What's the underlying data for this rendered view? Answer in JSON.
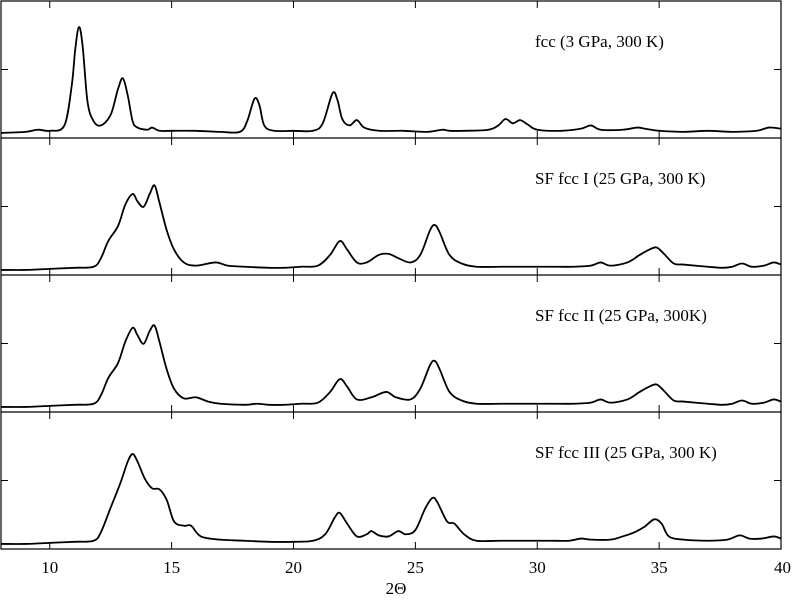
{
  "chart_data": {
    "type": "line",
    "xlabel": "2Θ",
    "ylabel": "",
    "xlim": [
      8,
      40
    ],
    "xticks": [
      10,
      15,
      20,
      25,
      30,
      35,
      40
    ],
    "grid": false,
    "panels": [
      {
        "label": "fcc (3 GPa, 300 K)",
        "ymax": 1.0,
        "points": [
          [
            8,
            0.01
          ],
          [
            9,
            0.02
          ],
          [
            9.5,
            0.04
          ],
          [
            10,
            0.03
          ],
          [
            10.6,
            0.08
          ],
          [
            10.9,
            0.45
          ],
          [
            11.05,
            0.8
          ],
          [
            11.2,
            1.0
          ],
          [
            11.35,
            0.82
          ],
          [
            11.55,
            0.3
          ],
          [
            11.8,
            0.12
          ],
          [
            12.1,
            0.08
          ],
          [
            12.5,
            0.18
          ],
          [
            12.8,
            0.42
          ],
          [
            13.0,
            0.52
          ],
          [
            13.2,
            0.36
          ],
          [
            13.4,
            0.12
          ],
          [
            13.6,
            0.06
          ],
          [
            14.0,
            0.04
          ],
          [
            14.2,
            0.06
          ],
          [
            14.5,
            0.03
          ],
          [
            15,
            0.03
          ],
          [
            16,
            0.03
          ],
          [
            17,
            0.02
          ],
          [
            17.8,
            0.02
          ],
          [
            18.1,
            0.12
          ],
          [
            18.4,
            0.33
          ],
          [
            18.6,
            0.27
          ],
          [
            18.8,
            0.08
          ],
          [
            19.2,
            0.03
          ],
          [
            20,
            0.03
          ],
          [
            20.8,
            0.03
          ],
          [
            21.2,
            0.1
          ],
          [
            21.6,
            0.38
          ],
          [
            21.8,
            0.32
          ],
          [
            22.0,
            0.14
          ],
          [
            22.3,
            0.08
          ],
          [
            22.6,
            0.13
          ],
          [
            22.9,
            0.06
          ],
          [
            23.5,
            0.03
          ],
          [
            24.5,
            0.03
          ],
          [
            25.5,
            0.02
          ],
          [
            26.1,
            0.04
          ],
          [
            26.4,
            0.03
          ],
          [
            27,
            0.03
          ],
          [
            28,
            0.04
          ],
          [
            28.4,
            0.08
          ],
          [
            28.7,
            0.14
          ],
          [
            29.0,
            0.1
          ],
          [
            29.3,
            0.13
          ],
          [
            29.6,
            0.09
          ],
          [
            30,
            0.04
          ],
          [
            31,
            0.03
          ],
          [
            31.8,
            0.05
          ],
          [
            32.2,
            0.08
          ],
          [
            32.6,
            0.04
          ],
          [
            33.5,
            0.04
          ],
          [
            34.1,
            0.06
          ],
          [
            34.4,
            0.05
          ],
          [
            35,
            0.03
          ],
          [
            36,
            0.02
          ],
          [
            37,
            0.03
          ],
          [
            38,
            0.02
          ],
          [
            39,
            0.03
          ],
          [
            39.5,
            0.06
          ],
          [
            40,
            0.05
          ]
        ]
      },
      {
        "label": "SF fcc I (25 GPa, 300 K)",
        "ymax": 1.0,
        "points": [
          [
            8,
            0.01
          ],
          [
            9,
            0.01
          ],
          [
            10,
            0.02
          ],
          [
            11,
            0.03
          ],
          [
            11.8,
            0.04
          ],
          [
            12.1,
            0.12
          ],
          [
            12.4,
            0.28
          ],
          [
            12.8,
            0.42
          ],
          [
            13.1,
            0.62
          ],
          [
            13.4,
            0.72
          ],
          [
            13.6,
            0.65
          ],
          [
            13.85,
            0.6
          ],
          [
            14.1,
            0.72
          ],
          [
            14.3,
            0.8
          ],
          [
            14.5,
            0.64
          ],
          [
            14.8,
            0.38
          ],
          [
            15.1,
            0.2
          ],
          [
            15.5,
            0.08
          ],
          [
            16,
            0.05
          ],
          [
            16.8,
            0.08
          ],
          [
            17.3,
            0.05
          ],
          [
            18,
            0.04
          ],
          [
            19,
            0.03
          ],
          [
            19.6,
            0.03
          ],
          [
            20.3,
            0.04
          ],
          [
            21,
            0.05
          ],
          [
            21.5,
            0.15
          ],
          [
            21.9,
            0.28
          ],
          [
            22.2,
            0.2
          ],
          [
            22.6,
            0.08
          ],
          [
            23.0,
            0.08
          ],
          [
            23.5,
            0.15
          ],
          [
            23.9,
            0.16
          ],
          [
            24.3,
            0.12
          ],
          [
            24.8,
            0.08
          ],
          [
            25.2,
            0.15
          ],
          [
            25.6,
            0.38
          ],
          [
            25.8,
            0.43
          ],
          [
            26.0,
            0.36
          ],
          [
            26.4,
            0.15
          ],
          [
            26.9,
            0.07
          ],
          [
            27.5,
            0.04
          ],
          [
            28.5,
            0.04
          ],
          [
            29.5,
            0.04
          ],
          [
            30.5,
            0.04
          ],
          [
            31.5,
            0.04
          ],
          [
            32.2,
            0.05
          ],
          [
            32.6,
            0.08
          ],
          [
            33.0,
            0.05
          ],
          [
            33.7,
            0.08
          ],
          [
            34.2,
            0.15
          ],
          [
            34.6,
            0.2
          ],
          [
            34.9,
            0.22
          ],
          [
            35.2,
            0.16
          ],
          [
            35.6,
            0.07
          ],
          [
            36,
            0.06
          ],
          [
            37,
            0.04
          ],
          [
            37.6,
            0.03
          ],
          [
            38,
            0.04
          ],
          [
            38.4,
            0.07
          ],
          [
            38.8,
            0.04
          ],
          [
            39.3,
            0.05
          ],
          [
            39.7,
            0.08
          ],
          [
            40,
            0.06
          ]
        ]
      },
      {
        "label": "SF fcc II (25 GPa, 300K)",
        "ymax": 1.0,
        "points": [
          [
            8,
            0.01
          ],
          [
            9,
            0.01
          ],
          [
            10,
            0.02
          ],
          [
            11,
            0.03
          ],
          [
            11.8,
            0.04
          ],
          [
            12.1,
            0.12
          ],
          [
            12.4,
            0.28
          ],
          [
            12.8,
            0.42
          ],
          [
            13.1,
            0.62
          ],
          [
            13.4,
            0.75
          ],
          [
            13.6,
            0.68
          ],
          [
            13.85,
            0.6
          ],
          [
            14.1,
            0.72
          ],
          [
            14.3,
            0.77
          ],
          [
            14.5,
            0.62
          ],
          [
            14.8,
            0.36
          ],
          [
            15.1,
            0.18
          ],
          [
            15.5,
            0.09
          ],
          [
            16,
            0.1
          ],
          [
            16.5,
            0.06
          ],
          [
            17,
            0.04
          ],
          [
            18,
            0.03
          ],
          [
            18.5,
            0.04
          ],
          [
            19,
            0.03
          ],
          [
            19.6,
            0.03
          ],
          [
            20.3,
            0.04
          ],
          [
            21,
            0.05
          ],
          [
            21.5,
            0.15
          ],
          [
            21.9,
            0.27
          ],
          [
            22.2,
            0.2
          ],
          [
            22.6,
            0.08
          ],
          [
            23.2,
            0.1
          ],
          [
            23.8,
            0.15
          ],
          [
            24.2,
            0.1
          ],
          [
            24.8,
            0.08
          ],
          [
            25.2,
            0.18
          ],
          [
            25.6,
            0.4
          ],
          [
            25.8,
            0.44
          ],
          [
            26.0,
            0.36
          ],
          [
            26.4,
            0.15
          ],
          [
            26.9,
            0.07
          ],
          [
            27.5,
            0.04
          ],
          [
            28.5,
            0.04
          ],
          [
            29.5,
            0.04
          ],
          [
            30.5,
            0.04
          ],
          [
            31.5,
            0.04
          ],
          [
            32.2,
            0.05
          ],
          [
            32.6,
            0.08
          ],
          [
            33.0,
            0.05
          ],
          [
            33.7,
            0.08
          ],
          [
            34.2,
            0.15
          ],
          [
            34.6,
            0.2
          ],
          [
            34.9,
            0.22
          ],
          [
            35.2,
            0.16
          ],
          [
            35.6,
            0.07
          ],
          [
            36,
            0.06
          ],
          [
            37,
            0.04
          ],
          [
            37.6,
            0.03
          ],
          [
            38,
            0.04
          ],
          [
            38.4,
            0.07
          ],
          [
            38.8,
            0.04
          ],
          [
            39.3,
            0.05
          ],
          [
            39.7,
            0.08
          ],
          [
            40,
            0.06
          ]
        ]
      },
      {
        "label": "SF fcc III (25 GPa, 300 K)",
        "ymax": 1.0,
        "points": [
          [
            8,
            0.01
          ],
          [
            9,
            0.01
          ],
          [
            10,
            0.02
          ],
          [
            11,
            0.03
          ],
          [
            11.8,
            0.04
          ],
          [
            12.1,
            0.12
          ],
          [
            12.5,
            0.35
          ],
          [
            12.9,
            0.58
          ],
          [
            13.2,
            0.78
          ],
          [
            13.4,
            0.85
          ],
          [
            13.6,
            0.78
          ],
          [
            13.9,
            0.62
          ],
          [
            14.2,
            0.53
          ],
          [
            14.5,
            0.52
          ],
          [
            14.8,
            0.42
          ],
          [
            15.1,
            0.22
          ],
          [
            15.5,
            0.18
          ],
          [
            15.8,
            0.18
          ],
          [
            16.2,
            0.08
          ],
          [
            17,
            0.05
          ],
          [
            18,
            0.04
          ],
          [
            19,
            0.03
          ],
          [
            20,
            0.03
          ],
          [
            20.8,
            0.04
          ],
          [
            21.3,
            0.1
          ],
          [
            21.7,
            0.26
          ],
          [
            21.9,
            0.3
          ],
          [
            22.2,
            0.2
          ],
          [
            22.6,
            0.08
          ],
          [
            23.0,
            0.1
          ],
          [
            23.2,
            0.13
          ],
          [
            23.5,
            0.09
          ],
          [
            23.9,
            0.08
          ],
          [
            24.3,
            0.13
          ],
          [
            24.6,
            0.1
          ],
          [
            25.0,
            0.14
          ],
          [
            25.4,
            0.34
          ],
          [
            25.7,
            0.44
          ],
          [
            25.9,
            0.4
          ],
          [
            26.3,
            0.22
          ],
          [
            26.6,
            0.2
          ],
          [
            27.0,
            0.1
          ],
          [
            27.5,
            0.04
          ],
          [
            28.5,
            0.04
          ],
          [
            29.5,
            0.04
          ],
          [
            30.5,
            0.04
          ],
          [
            31.3,
            0.04
          ],
          [
            31.8,
            0.06
          ],
          [
            32.2,
            0.05
          ],
          [
            33.0,
            0.05
          ],
          [
            33.5,
            0.08
          ],
          [
            34.0,
            0.12
          ],
          [
            34.4,
            0.17
          ],
          [
            34.8,
            0.24
          ],
          [
            35.1,
            0.2
          ],
          [
            35.4,
            0.08
          ],
          [
            36,
            0.05
          ],
          [
            37,
            0.04
          ],
          [
            37.8,
            0.05
          ],
          [
            38.3,
            0.09
          ],
          [
            38.7,
            0.06
          ],
          [
            39.2,
            0.06
          ],
          [
            39.7,
            0.08
          ],
          [
            40,
            0.06
          ]
        ]
      }
    ]
  }
}
